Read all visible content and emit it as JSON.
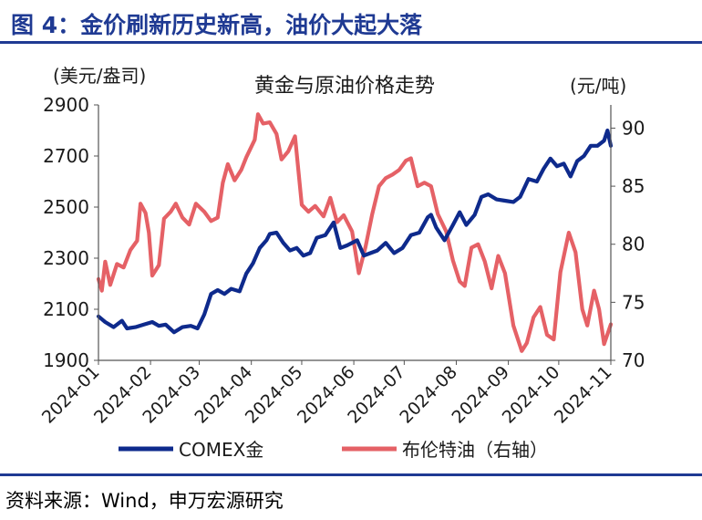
{
  "figure_title": "图 4：金价刷新历史新高，油价大起大落",
  "source": "资料来源：Wind，申万宏源研究",
  "colors": {
    "gold": "#0e2a8c",
    "brent": "#e56166",
    "accent": "#1f3a93"
  },
  "chart_data": {
    "type": "line",
    "title": "黄金与原油价格走势",
    "ylabel_left": "(美元/盎司)",
    "ylabel_right": "(元/吨)",
    "y_left": {
      "min": 1900,
      "max": 2900,
      "ticks": [
        "1900",
        "2100",
        "2300",
        "2500",
        "2700",
        "2900"
      ]
    },
    "y_right": {
      "min": 70,
      "max": 92,
      "ticks": [
        "70",
        "75",
        "80",
        "85",
        "90"
      ]
    },
    "x_range": [
      "2024-01-01",
      "2024-11-01"
    ],
    "x_ticks": [
      "2024-01",
      "2024-02",
      "2024-03",
      "2024-04",
      "2024-05",
      "2024-06",
      "2024-07",
      "2024-08",
      "2024-09",
      "2024-10",
      "2024-11"
    ],
    "grid": false,
    "legend_position": "bottom",
    "series": [
      {
        "name": "COMEX金",
        "axis": "left",
        "color": "#0e2a8c",
        "points": [
          [
            "2024-01-01",
            2072
          ],
          [
            "2024-01-05",
            2050
          ],
          [
            "2024-01-10",
            2030
          ],
          [
            "2024-01-15",
            2055
          ],
          [
            "2024-01-18",
            2025
          ],
          [
            "2024-01-23",
            2030
          ],
          [
            "2024-01-28",
            2040
          ],
          [
            "2024-02-02",
            2050
          ],
          [
            "2024-02-06",
            2035
          ],
          [
            "2024-02-10",
            2040
          ],
          [
            "2024-02-15",
            2010
          ],
          [
            "2024-02-20",
            2030
          ],
          [
            "2024-02-25",
            2035
          ],
          [
            "2024-02-29",
            2025
          ],
          [
            "2024-03-04",
            2080
          ],
          [
            "2024-03-08",
            2160
          ],
          [
            "2024-03-12",
            2175
          ],
          [
            "2024-03-16",
            2160
          ],
          [
            "2024-03-20",
            2180
          ],
          [
            "2024-03-25",
            2170
          ],
          [
            "2024-03-29",
            2240
          ],
          [
            "2024-04-02",
            2280
          ],
          [
            "2024-04-06",
            2340
          ],
          [
            "2024-04-10",
            2370
          ],
          [
            "2024-04-12",
            2395
          ],
          [
            "2024-04-16",
            2400
          ],
          [
            "2024-04-20",
            2360
          ],
          [
            "2024-04-24",
            2330
          ],
          [
            "2024-04-28",
            2340
          ],
          [
            "2024-05-02",
            2310
          ],
          [
            "2024-05-06",
            2320
          ],
          [
            "2024-05-10",
            2380
          ],
          [
            "2024-05-15",
            2390
          ],
          [
            "2024-05-20",
            2440
          ],
          [
            "2024-05-24",
            2340
          ],
          [
            "2024-05-28",
            2350
          ],
          [
            "2024-06-03",
            2370
          ],
          [
            "2024-06-07",
            2310
          ],
          [
            "2024-06-11",
            2320
          ],
          [
            "2024-06-15",
            2330
          ],
          [
            "2024-06-20",
            2360
          ],
          [
            "2024-06-25",
            2320
          ],
          [
            "2024-06-30",
            2340
          ],
          [
            "2024-07-05",
            2390
          ],
          [
            "2024-07-10",
            2400
          ],
          [
            "2024-07-15",
            2460
          ],
          [
            "2024-07-17",
            2470
          ],
          [
            "2024-07-20",
            2420
          ],
          [
            "2024-07-25",
            2370
          ],
          [
            "2024-07-30",
            2430
          ],
          [
            "2024-08-03",
            2480
          ],
          [
            "2024-08-07",
            2430
          ],
          [
            "2024-08-12",
            2470
          ],
          [
            "2024-08-16",
            2540
          ],
          [
            "2024-08-20",
            2550
          ],
          [
            "2024-08-25",
            2530
          ],
          [
            "2024-08-30",
            2525
          ],
          [
            "2024-09-04",
            2520
          ],
          [
            "2024-09-08",
            2540
          ],
          [
            "2024-09-13",
            2610
          ],
          [
            "2024-09-18",
            2600
          ],
          [
            "2024-09-22",
            2650
          ],
          [
            "2024-09-26",
            2690
          ],
          [
            "2024-09-30",
            2660
          ],
          [
            "2024-10-04",
            2670
          ],
          [
            "2024-10-08",
            2620
          ],
          [
            "2024-10-12",
            2680
          ],
          [
            "2024-10-16",
            2700
          ],
          [
            "2024-10-20",
            2740
          ],
          [
            "2024-10-24",
            2740
          ],
          [
            "2024-10-28",
            2760
          ],
          [
            "2024-10-30",
            2800
          ],
          [
            "2024-11-01",
            2740
          ]
        ]
      },
      {
        "name": "布伦特油（右轴）",
        "axis": "right",
        "color": "#e56166",
        "points": [
          [
            "2024-01-01",
            77
          ],
          [
            "2024-01-03",
            76
          ],
          [
            "2024-01-05",
            78.5
          ],
          [
            "2024-01-08",
            76.5
          ],
          [
            "2024-01-12",
            78.3
          ],
          [
            "2024-01-16",
            78
          ],
          [
            "2024-01-20",
            79.5
          ],
          [
            "2024-01-24",
            80.3
          ],
          [
            "2024-01-26",
            83.5
          ],
          [
            "2024-01-29",
            82.7
          ],
          [
            "2024-01-31",
            81
          ],
          [
            "2024-02-02",
            77.3
          ],
          [
            "2024-02-06",
            78.2
          ],
          [
            "2024-02-09",
            82.2
          ],
          [
            "2024-02-13",
            82.8
          ],
          [
            "2024-02-16",
            83.5
          ],
          [
            "2024-02-20",
            82.3
          ],
          [
            "2024-02-24",
            81.7
          ],
          [
            "2024-02-28",
            83.5
          ],
          [
            "2024-03-04",
            82.8
          ],
          [
            "2024-03-08",
            82.0
          ],
          [
            "2024-03-12",
            82.3
          ],
          [
            "2024-03-15",
            85.3
          ],
          [
            "2024-03-18",
            86.9
          ],
          [
            "2024-03-22",
            85.5
          ],
          [
            "2024-03-26",
            86.4
          ],
          [
            "2024-03-29",
            87.5
          ],
          [
            "2024-04-03",
            89.0
          ],
          [
            "2024-04-05",
            91.2
          ],
          [
            "2024-04-08",
            90.4
          ],
          [
            "2024-04-12",
            90.5
          ],
          [
            "2024-04-16",
            89.5
          ],
          [
            "2024-04-19",
            87.3
          ],
          [
            "2024-04-23",
            88.0
          ],
          [
            "2024-04-27",
            89.3
          ],
          [
            "2024-05-01",
            83.4
          ],
          [
            "2024-05-05",
            82.8
          ],
          [
            "2024-05-09",
            83.3
          ],
          [
            "2024-05-14",
            82.4
          ],
          [
            "2024-05-18",
            84.0
          ],
          [
            "2024-05-22",
            81.9
          ],
          [
            "2024-05-26",
            82.5
          ],
          [
            "2024-05-31",
            81.1
          ],
          [
            "2024-06-04",
            77.5
          ],
          [
            "2024-06-08",
            79.8
          ],
          [
            "2024-06-12",
            82.6
          ],
          [
            "2024-06-16",
            85.0
          ],
          [
            "2024-06-20",
            85.7
          ],
          [
            "2024-06-24",
            86.0
          ],
          [
            "2024-06-28",
            86.4
          ],
          [
            "2024-07-02",
            87.2
          ],
          [
            "2024-07-05",
            87.4
          ],
          [
            "2024-07-09",
            85.0
          ],
          [
            "2024-07-13",
            85.3
          ],
          [
            "2024-07-17",
            85.0
          ],
          [
            "2024-07-21",
            82.6
          ],
          [
            "2024-07-26",
            81.1
          ],
          [
            "2024-07-30",
            78.6
          ],
          [
            "2024-08-03",
            76.8
          ],
          [
            "2024-08-06",
            76.4
          ],
          [
            "2024-08-10",
            79.7
          ],
          [
            "2024-08-14",
            80.0
          ],
          [
            "2024-08-18",
            78.5
          ],
          [
            "2024-08-22",
            76.2
          ],
          [
            "2024-08-26",
            79.0
          ],
          [
            "2024-08-30",
            77.5
          ],
          [
            "2024-09-04",
            73.0
          ],
          [
            "2024-09-09",
            70.8
          ],
          [
            "2024-09-12",
            71.5
          ],
          [
            "2024-09-16",
            73.7
          ],
          [
            "2024-09-20",
            74.6
          ],
          [
            "2024-09-24",
            72.2
          ],
          [
            "2024-09-28",
            71.8
          ],
          [
            "2024-10-02",
            77.6
          ],
          [
            "2024-10-07",
            81.0
          ],
          [
            "2024-10-11",
            79.3
          ],
          [
            "2024-10-15",
            74.4
          ],
          [
            "2024-10-18",
            73.0
          ],
          [
            "2024-10-22",
            76.0
          ],
          [
            "2024-10-25",
            74.4
          ],
          [
            "2024-10-28",
            71.4
          ],
          [
            "2024-11-01",
            73.1
          ]
        ]
      }
    ]
  }
}
